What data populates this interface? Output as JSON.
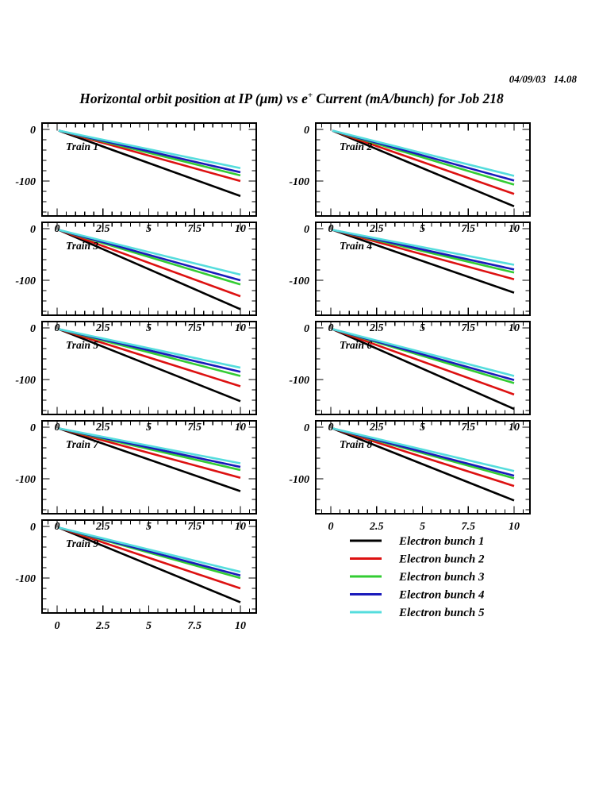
{
  "header": {
    "datetime": "04/09/03   14.08",
    "title_pre": "Horizontal orbit position at IP (μm) vs e",
    "title_sup": "+",
    "title_post": " Current (mA/bunch) for Job 218"
  },
  "axes": {
    "x_ticks": [
      "0",
      "2.5",
      "5",
      "7.5",
      "10"
    ],
    "x_tick_values": [
      0,
      2.5,
      5,
      7.5,
      10
    ],
    "x_minor_step": 0.5,
    "y_ticks": [
      "0",
      "-100"
    ],
    "y_tick_values": [
      0,
      -100
    ],
    "y_minor_step": -20,
    "grid": false
  },
  "chart_data": {
    "type": "line",
    "title": "Horizontal orbit position at IP (μm) vs e+ Current (mA/bunch) for Job 218",
    "xlabel": "e+ Current (mA/bunch)",
    "ylabel": "Horizontal orbit position at IP (μm)",
    "x_range": [
      0,
      10
    ],
    "y_axis_labeled_range": [
      0,
      -100
    ],
    "start_value": 0,
    "x_end": 10,
    "bunches": [
      {
        "label": "Electron bunch 1",
        "color": "#000000"
      },
      {
        "label": "Electron bunch 2",
        "color": "#DD1111"
      },
      {
        "label": "Electron bunch 3",
        "color": "#33CC33"
      },
      {
        "label": "Electron bunch 4",
        "color": "#1A1ABB"
      },
      {
        "label": "Electron bunch 5",
        "color": "#55DDDD"
      }
    ],
    "trains": [
      {
        "name": "Train 1",
        "end_values": [
          -129,
          -100,
          -89,
          -83,
          -75
        ]
      },
      {
        "name": "Train 2",
        "end_values": [
          -149,
          -125,
          -107,
          -99,
          -90
        ]
      },
      {
        "name": "Train 3",
        "end_values": [
          -156,
          -131,
          -108,
          -100,
          -89
        ]
      },
      {
        "name": "Train 4",
        "end_values": [
          -124,
          -98,
          -85,
          -79,
          -70
        ]
      },
      {
        "name": "Train 5",
        "end_values": [
          -142,
          -113,
          -93,
          -85,
          -77
        ]
      },
      {
        "name": "Train 6",
        "end_values": [
          -157,
          -129,
          -107,
          -101,
          -93
        ]
      },
      {
        "name": "Train 7",
        "end_values": [
          -124,
          -98,
          -83,
          -77,
          -70
        ]
      },
      {
        "name": "Train 8",
        "end_values": [
          -142,
          -114,
          -99,
          -94,
          -85
        ]
      },
      {
        "name": "Train 9",
        "end_values": [
          -147,
          -120,
          -100,
          -95,
          -88
        ]
      }
    ],
    "legend_position": "bottom-right-cell"
  }
}
